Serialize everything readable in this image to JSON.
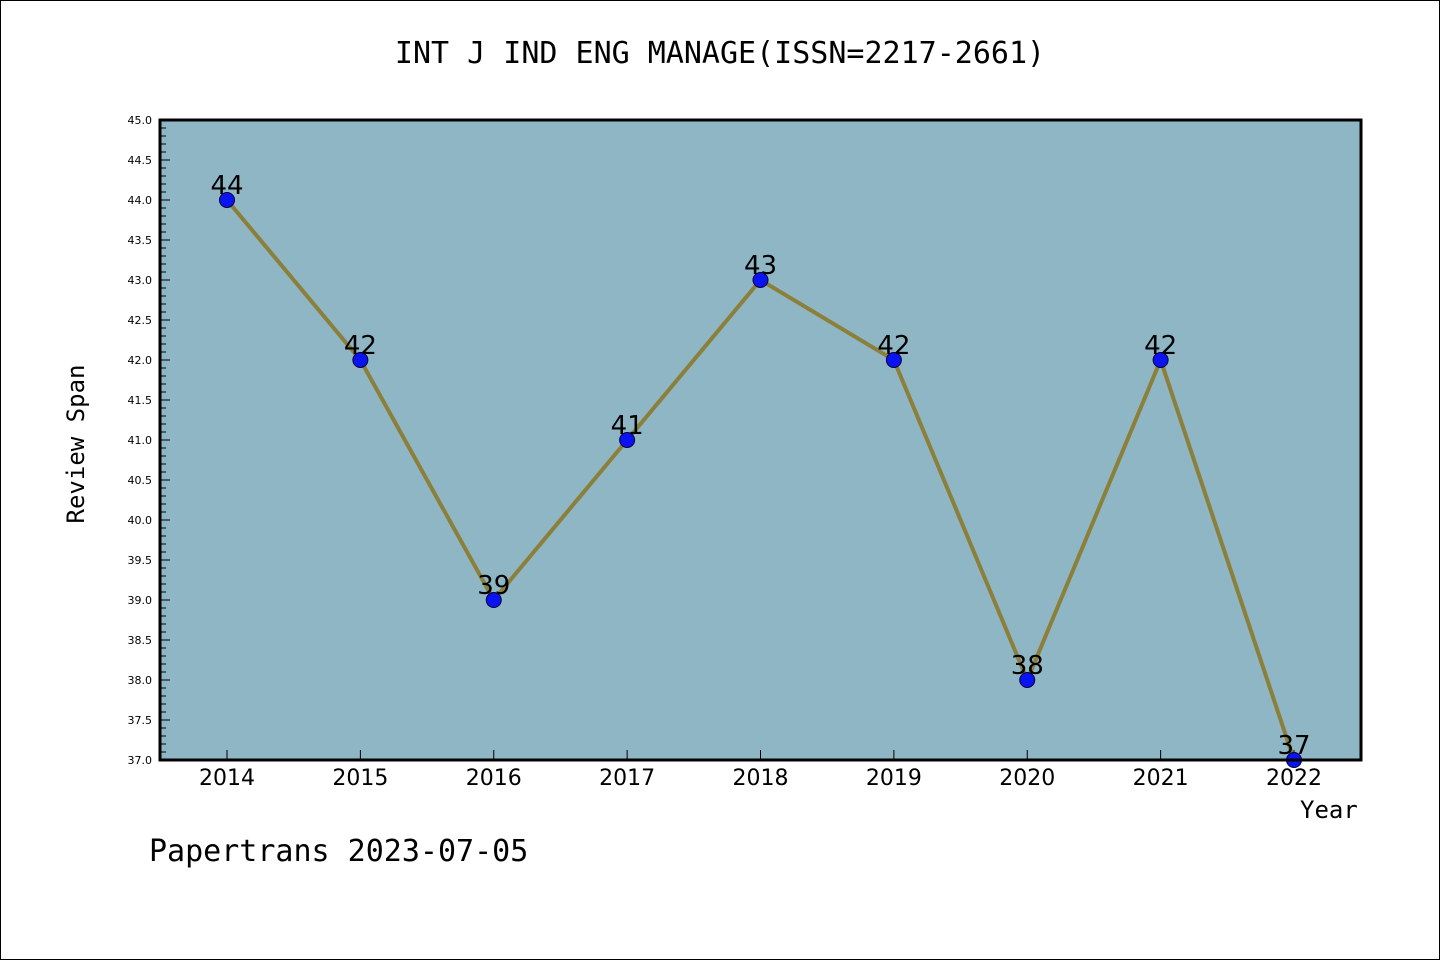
{
  "page": {
    "footer_text": "Papertrans 2023-07-05"
  },
  "chart_data": {
    "type": "line",
    "title": "INT J IND ENG MANAGE(ISSN=2217-2661)",
    "xlabel": "Year",
    "ylabel": "Review Span",
    "categories": [
      "2014",
      "2015",
      "2016",
      "2017",
      "2018",
      "2019",
      "2020",
      "2021",
      "2022"
    ],
    "series": [
      {
        "values": [
          44,
          42,
          39,
          41,
          43,
          42,
          38,
          42,
          37
        ],
        "data_labels": [
          "44",
          "42",
          "39",
          "41",
          "43",
          "42",
          "38",
          "42",
          "37"
        ]
      }
    ],
    "ylim": [
      37.0,
      45.0
    ],
    "y_ticks": [
      "37.0",
      "37.5",
      "38.0",
      "38.5",
      "39.0",
      "39.5",
      "40.0",
      "40.5",
      "41.0",
      "41.5",
      "42.0",
      "42.5",
      "43.0",
      "43.5",
      "44.0",
      "44.5",
      "45.0"
    ],
    "grid": false,
    "legend": "none",
    "colors": {
      "plot_background": "#8fb6c4",
      "line": "#8b7f3a",
      "marker_fill": "#0a14f0",
      "marker_edge": "#000033",
      "axes": "#000000"
    }
  }
}
